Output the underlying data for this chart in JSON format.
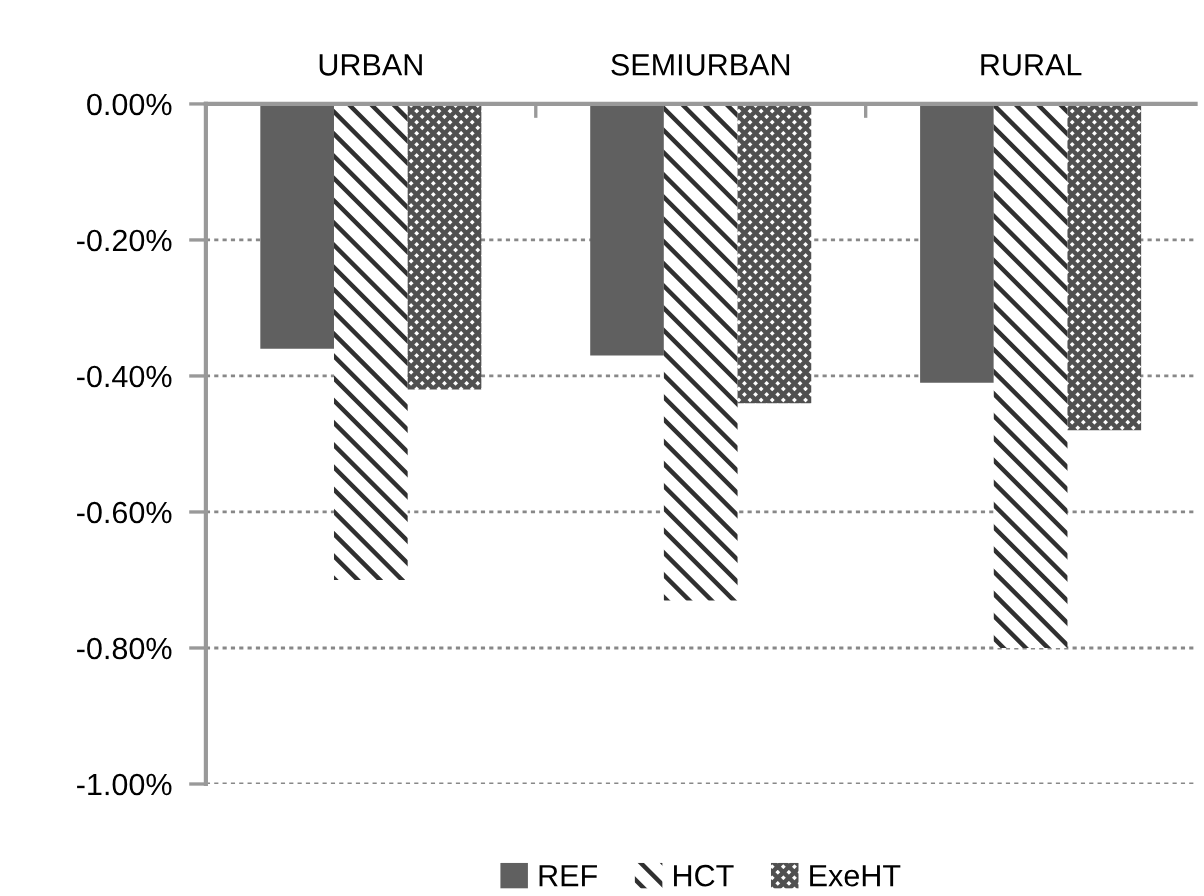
{
  "chart_data": {
    "type": "bar",
    "categories": [
      "URBAN",
      "SEMIURBAN",
      "RURAL"
    ],
    "series": [
      {
        "name": "REF",
        "color": "#606060",
        "values": [
          -0.36,
          -0.37,
          -0.41
        ]
      },
      {
        "name": "HCT",
        "color": "#303030",
        "values": [
          -0.7,
          -0.73,
          -0.8
        ]
      },
      {
        "name": "ExeHT",
        "color": "#505050",
        "values": [
          -0.42,
          -0.44,
          -0.48
        ]
      }
    ],
    "ylim": [
      -1.0,
      0.0
    ],
    "yticks": [
      {
        "value": -1.0,
        "label": "-1.00%"
      },
      {
        "value": -0.8,
        "label": "-0.80%"
      },
      {
        "value": -0.6,
        "label": "-0.60%"
      },
      {
        "value": -0.4,
        "label": "-0.40%"
      },
      {
        "value": -0.2,
        "label": "-0.20%"
      },
      {
        "value": 0.0,
        "label": "0.00%"
      }
    ],
    "grid": "y",
    "legend": "bottom"
  }
}
